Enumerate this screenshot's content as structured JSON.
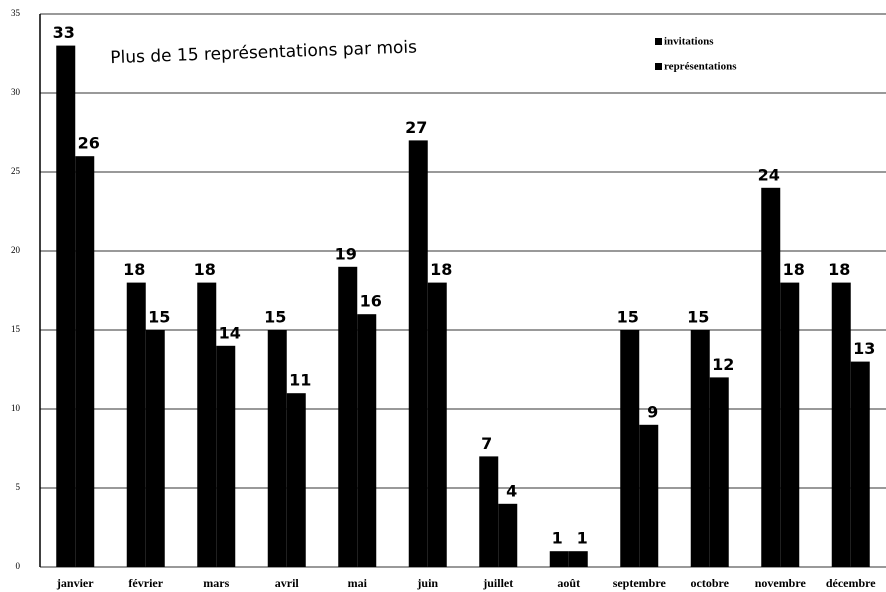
{
  "chart_data": {
    "type": "bar",
    "title": "Plus de 15 représentations par mois",
    "categories": [
      "janvier",
      "février",
      "mars",
      "avril",
      "mai",
      "juin",
      "juillet",
      "août",
      "septembre",
      "octobre",
      "novembre",
      "décembre"
    ],
    "series": [
      {
        "name": "invitations",
        "color": "#000000",
        "values": [
          33,
          18,
          18,
          15,
          19,
          27,
          7,
          1,
          15,
          15,
          24,
          18
        ]
      },
      {
        "name": "représentations",
        "color": "#000000",
        "values": [
          26,
          15,
          14,
          11,
          16,
          18,
          4,
          1,
          9,
          12,
          18,
          13
        ]
      }
    ],
    "ylim": [
      0,
      35
    ],
    "yticks": [
      0,
      5,
      10,
      15,
      20,
      25,
      30,
      35
    ],
    "grid": true,
    "legend": "top-right"
  }
}
